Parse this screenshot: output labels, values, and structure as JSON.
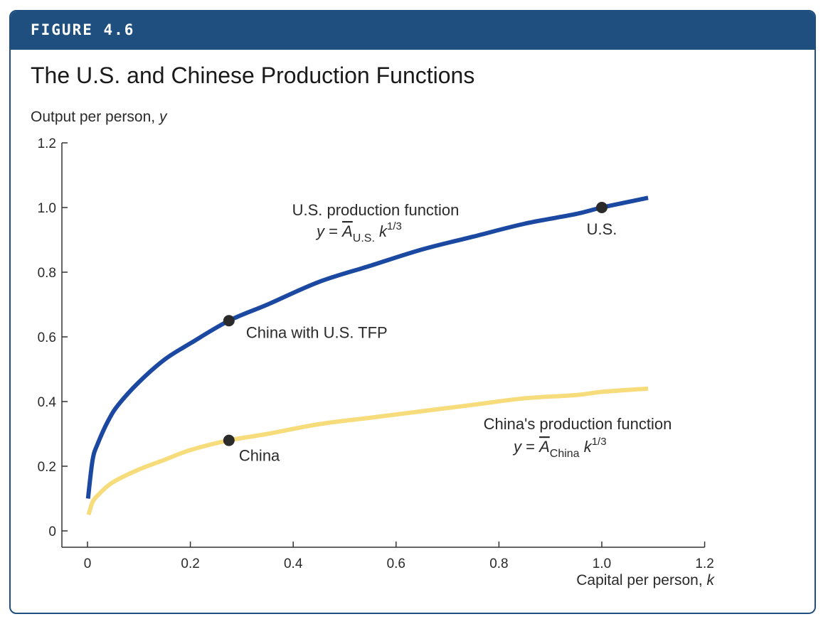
{
  "figure": {
    "label": "FIGURE 4.6",
    "title": "The U.S. and Chinese Production Functions",
    "colors": {
      "frame": "#1e4f7e",
      "us_curve": "#1b48a0",
      "china_curve": "#f7dc7c",
      "point": "#2b2b2b"
    }
  },
  "chart_data": {
    "type": "line",
    "title": "The U.S. and Chinese Production Functions",
    "ylabel": "Output per person, y",
    "xlabel": "Capital per person, k",
    "xlim": [
      -0.05,
      1.2
    ],
    "ylim": [
      -0.05,
      1.2
    ],
    "xticks": [
      0,
      0.2,
      0.4,
      0.6,
      0.8,
      1.0,
      1.2
    ],
    "xtick_labels": [
      "0",
      "0.2",
      "0.4",
      "0.6",
      "0.8",
      "1.0",
      "1.2"
    ],
    "yticks": [
      0,
      0.2,
      0.4,
      0.6,
      0.8,
      1.0,
      1.2
    ],
    "ytick_labels": [
      "0",
      "0.2",
      "0.4",
      "0.6",
      "0.8",
      "1.0",
      "1.2"
    ],
    "grid": false,
    "series": [
      {
        "name": "U.S. production function",
        "equation": {
          "lhs": "y = ",
          "a": "A",
          "sub": "U.S.",
          "k": " k",
          "exp": "1/3"
        },
        "color": "#1b48a0",
        "x": [
          0.001,
          0.01,
          0.02,
          0.04,
          0.06,
          0.1,
          0.15,
          0.2,
          0.275,
          0.35,
          0.45,
          0.55,
          0.65,
          0.75,
          0.85,
          0.95,
          1.0,
          1.09
        ],
        "y": [
          0.1,
          0.22,
          0.27,
          0.34,
          0.39,
          0.46,
          0.53,
          0.58,
          0.65,
          0.7,
          0.77,
          0.82,
          0.87,
          0.91,
          0.95,
          0.98,
          1.0,
          1.03
        ]
      },
      {
        "name": "China's production function",
        "equation": {
          "lhs": "y = ",
          "a": "A",
          "sub": "China",
          "k": " k",
          "exp": "1/3"
        },
        "color": "#f7dc7c",
        "x": [
          0.002,
          0.01,
          0.02,
          0.04,
          0.06,
          0.1,
          0.15,
          0.2,
          0.275,
          0.35,
          0.45,
          0.55,
          0.65,
          0.75,
          0.85,
          0.95,
          1.0,
          1.09
        ],
        "y": [
          0.05,
          0.09,
          0.11,
          0.14,
          0.16,
          0.19,
          0.22,
          0.25,
          0.28,
          0.3,
          0.33,
          0.35,
          0.37,
          0.39,
          0.41,
          0.42,
          0.43,
          0.44
        ]
      }
    ],
    "points": [
      {
        "label": "U.S.",
        "x": 1.0,
        "y": 1.0
      },
      {
        "label": "China with U.S. TFP",
        "x": 0.275,
        "y": 0.65
      },
      {
        "label": "China",
        "x": 0.275,
        "y": 0.28
      }
    ]
  }
}
